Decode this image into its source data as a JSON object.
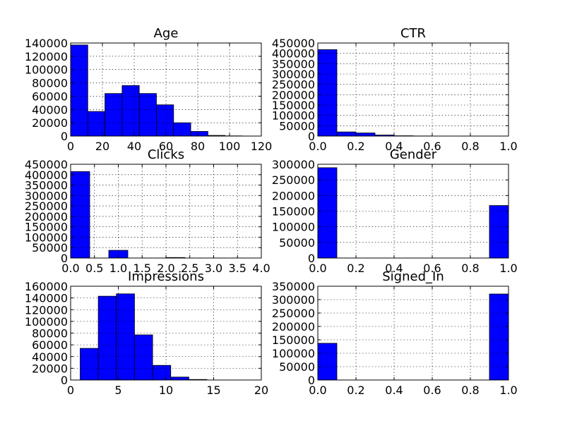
{
  "chart_data": [
    {
      "type": "bar",
      "title": "Age",
      "bar_color": "#0000ff",
      "xlim": [
        0,
        120
      ],
      "ylim": [
        0,
        140000
      ],
      "xticks": [
        0,
        20,
        40,
        60,
        80,
        100,
        120
      ],
      "yticks": [
        0,
        20000,
        40000,
        60000,
        80000,
        100000,
        120000,
        140000
      ],
      "grid": true,
      "bin_edges": [
        0,
        10.8,
        21.6,
        32.4,
        43.2,
        54,
        64.8,
        75.6,
        86.4,
        97.2,
        108
      ],
      "values": [
        137000,
        37000,
        64000,
        76000,
        64000,
        47000,
        20000,
        7000,
        1000,
        300
      ]
    },
    {
      "type": "bar",
      "title": "CTR",
      "bar_color": "#0000ff",
      "xlim": [
        0,
        1
      ],
      "ylim": [
        0,
        450000
      ],
      "xticks": [
        0.0,
        0.2,
        0.4,
        0.6,
        0.8,
        1.0
      ],
      "yticks": [
        0,
        50000,
        100000,
        150000,
        200000,
        250000,
        300000,
        350000,
        400000,
        450000
      ],
      "grid": true,
      "bin_edges": [
        0,
        0.1,
        0.2,
        0.3,
        0.4,
        0.5,
        0.6,
        0.7,
        0.8,
        0.9,
        1.0
      ],
      "values": [
        418000,
        20000,
        15000,
        5000,
        1500,
        600,
        300,
        100,
        50,
        300
      ]
    },
    {
      "type": "bar",
      "title": "Clicks",
      "bar_color": "#0000ff",
      "xlim": [
        0,
        4
      ],
      "ylim": [
        0,
        450000
      ],
      "xticks": [
        0.0,
        0.5,
        1.0,
        1.5,
        2.0,
        2.5,
        3.0,
        3.5,
        4.0
      ],
      "yticks": [
        0,
        50000,
        100000,
        150000,
        200000,
        250000,
        300000,
        350000,
        400000,
        450000
      ],
      "grid": true,
      "bin_edges": [
        0,
        0.4,
        0.8,
        1.2,
        1.6,
        2.0,
        2.4,
        2.8,
        3.2,
        3.6,
        4.0
      ],
      "values": [
        415000,
        0,
        37000,
        0,
        0,
        2500,
        0,
        200,
        0,
        30
      ]
    },
    {
      "type": "bar",
      "title": "Gender",
      "bar_color": "#0000ff",
      "xlim": [
        0,
        1
      ],
      "ylim": [
        0,
        300000
      ],
      "xticks": [
        0.0,
        0.2,
        0.4,
        0.6,
        0.8,
        1.0
      ],
      "yticks": [
        0,
        50000,
        100000,
        150000,
        200000,
        250000,
        300000
      ],
      "grid": true,
      "bin_edges": [
        0,
        0.1,
        0.2,
        0.3,
        0.4,
        0.5,
        0.6,
        0.7,
        0.8,
        0.9,
        1.0
      ],
      "values": [
        289000,
        0,
        0,
        0,
        0,
        0,
        0,
        0,
        0,
        168000
      ]
    },
    {
      "type": "bar",
      "title": "Impressions",
      "bar_color": "#0000ff",
      "xlim": [
        0,
        20
      ],
      "ylim": [
        0,
        160000
      ],
      "xticks": [
        0,
        5,
        10,
        15,
        20
      ],
      "yticks": [
        0,
        20000,
        40000,
        60000,
        80000,
        100000,
        120000,
        140000,
        160000
      ],
      "grid": true,
      "bin_edges": [
        1,
        2.9,
        4.8,
        6.7,
        8.6,
        10.5,
        12.4,
        14.3,
        16.2,
        18.1,
        20
      ],
      "values": [
        54000,
        143000,
        147000,
        77000,
        25000,
        5000,
        900,
        100,
        20,
        5
      ]
    },
    {
      "type": "bar",
      "title": "Signed_In",
      "bar_color": "#0000ff",
      "xlim": [
        0,
        1
      ],
      "ylim": [
        0,
        350000
      ],
      "xticks": [
        0.0,
        0.2,
        0.4,
        0.6,
        0.8,
        1.0
      ],
      "yticks": [
        0,
        50000,
        100000,
        150000,
        200000,
        250000,
        300000,
        350000
      ],
      "grid": true,
      "bin_edges": [
        0,
        0.1,
        0.2,
        0.3,
        0.4,
        0.5,
        0.6,
        0.7,
        0.8,
        0.9,
        1.0
      ],
      "values": [
        137000,
        0,
        0,
        0,
        0,
        0,
        0,
        0,
        0,
        321000
      ]
    }
  ]
}
